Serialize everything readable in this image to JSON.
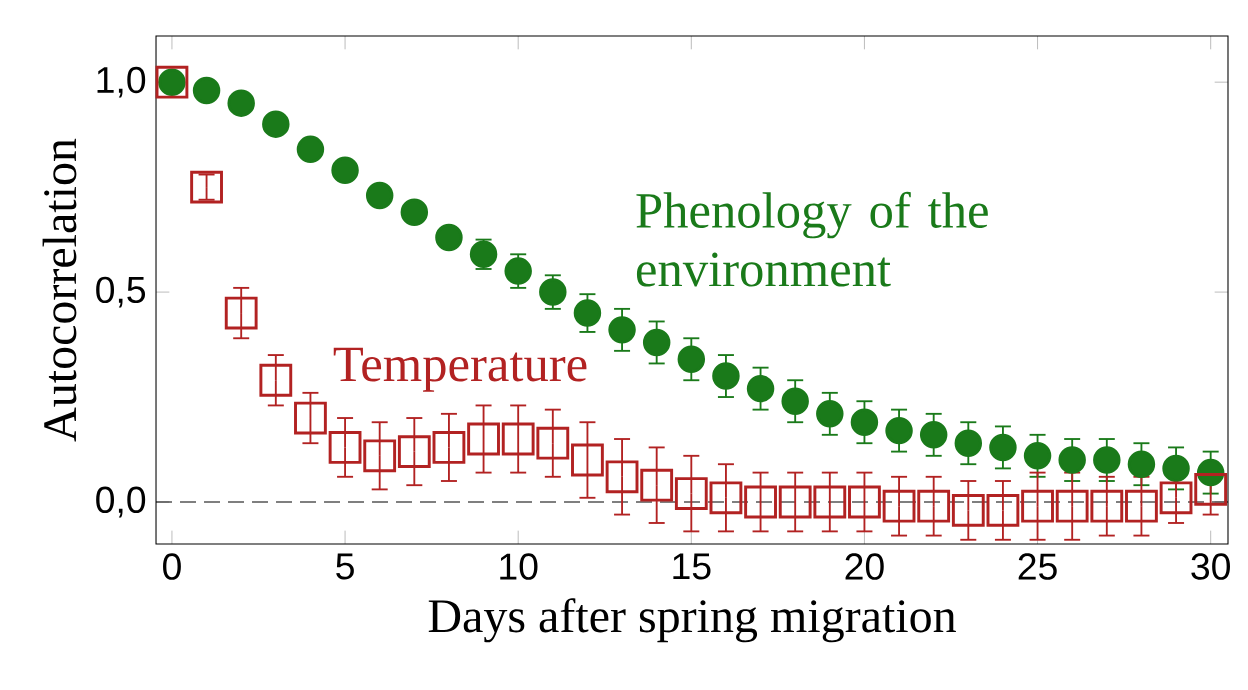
{
  "chart_data": {
    "type": "scatter",
    "xlabel": "Days after spring migration",
    "ylabel": "Autocorrelation",
    "x": [
      0,
      1,
      2,
      3,
      4,
      5,
      6,
      7,
      8,
      9,
      10,
      11,
      12,
      13,
      14,
      15,
      16,
      17,
      18,
      19,
      20,
      21,
      22,
      23,
      24,
      25,
      26,
      27,
      28,
      29,
      30
    ],
    "series": [
      {
        "name": "Phenology of the environment",
        "color": "#1a7a1a",
        "marker": "circle",
        "values": [
          1.0,
          0.98,
          0.95,
          0.9,
          0.84,
          0.79,
          0.73,
          0.69,
          0.63,
          0.59,
          0.55,
          0.5,
          0.45,
          0.41,
          0.38,
          0.34,
          0.3,
          0.27,
          0.24,
          0.21,
          0.19,
          0.17,
          0.16,
          0.14,
          0.13,
          0.11,
          0.1,
          0.1,
          0.09,
          0.08,
          0.07
        ],
        "errors": [
          null,
          null,
          null,
          null,
          null,
          null,
          null,
          null,
          0.02,
          0.035,
          0.04,
          0.04,
          0.045,
          0.05,
          0.05,
          0.05,
          0.05,
          0.05,
          0.05,
          0.05,
          0.05,
          0.05,
          0.05,
          0.05,
          0.05,
          0.05,
          0.05,
          0.05,
          0.05,
          0.05,
          0.05
        ]
      },
      {
        "name": "Temperature",
        "color": "#b22222",
        "marker": "square",
        "values": [
          1.0,
          0.75,
          0.45,
          0.29,
          0.2,
          0.13,
          0.11,
          0.12,
          0.13,
          0.15,
          0.15,
          0.14,
          0.1,
          0.06,
          0.04,
          0.02,
          0.01,
          0.0,
          0.0,
          0.0,
          0.0,
          -0.01,
          -0.01,
          -0.02,
          -0.02,
          -0.01,
          -0.01,
          -0.01,
          -0.01,
          0.01,
          0.03
        ],
        "errors": [
          null,
          0.03,
          0.06,
          0.06,
          0.06,
          0.07,
          0.08,
          0.08,
          0.08,
          0.08,
          0.08,
          0.08,
          0.09,
          0.09,
          0.09,
          0.09,
          0.08,
          0.07,
          0.07,
          0.07,
          0.07,
          0.07,
          0.07,
          0.07,
          0.07,
          0.08,
          0.08,
          0.07,
          0.07,
          0.06,
          0.06
        ]
      }
    ],
    "xlim": [
      -0.46,
      30.5
    ],
    "ylim": [
      -0.1,
      1.11
    ],
    "xticks": [
      0,
      5,
      10,
      15,
      20,
      25,
      30
    ],
    "yticks": [
      {
        "value": 0,
        "label": "0,0"
      },
      {
        "value": 0.5,
        "label": "0,5"
      },
      {
        "value": 1,
        "label": "1,0"
      }
    ],
    "ref_lines": [
      {
        "axis": "y",
        "value": 0,
        "line_style": "dashed"
      }
    ]
  }
}
